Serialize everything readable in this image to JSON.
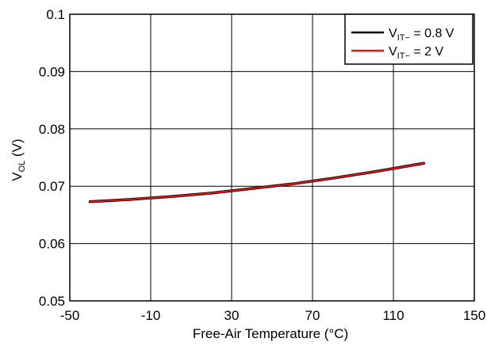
{
  "chart_data": {
    "type": "line",
    "title": "",
    "xlabel": "Free-Air Temperature (°C)",
    "ylabel": {
      "main": "V",
      "sub": "OL",
      "unit": " (V)"
    },
    "xlim": [
      -50,
      150
    ],
    "ylim": [
      0.05,
      0.1
    ],
    "xticks": [
      -50,
      -10,
      30,
      70,
      110,
      150
    ],
    "yticks": [
      0.05,
      0.06,
      0.07,
      0.08,
      0.09,
      0.1
    ],
    "xtick_labels": [
      "-50",
      "-10",
      "30",
      "70",
      "110",
      "150"
    ],
    "ytick_labels": [
      "0.05",
      "0.06",
      "0.07",
      "0.08",
      "0.09",
      "0.1"
    ],
    "grid": true,
    "legend_position": "top-right",
    "series": [
      {
        "name": {
          "main": "V",
          "sub": "IT−",
          "rest": " = 0.8 V"
        },
        "color": "#000000",
        "x": [
          -40,
          -20,
          0,
          20,
          40,
          60,
          80,
          100,
          125
        ],
        "y": [
          0.0673,
          0.0677,
          0.0682,
          0.0688,
          0.0696,
          0.0704,
          0.0714,
          0.0725,
          0.074
        ]
      },
      {
        "name": {
          "main": "V",
          "sub": "IT−",
          "rest": " = 2 V"
        },
        "color": "#e8130f",
        "x": [
          -40,
          -20,
          0,
          20,
          40,
          60,
          80,
          100,
          125
        ],
        "y": [
          0.0673,
          0.0677,
          0.0682,
          0.0688,
          0.0696,
          0.0704,
          0.0714,
          0.0725,
          0.074
        ]
      }
    ]
  }
}
